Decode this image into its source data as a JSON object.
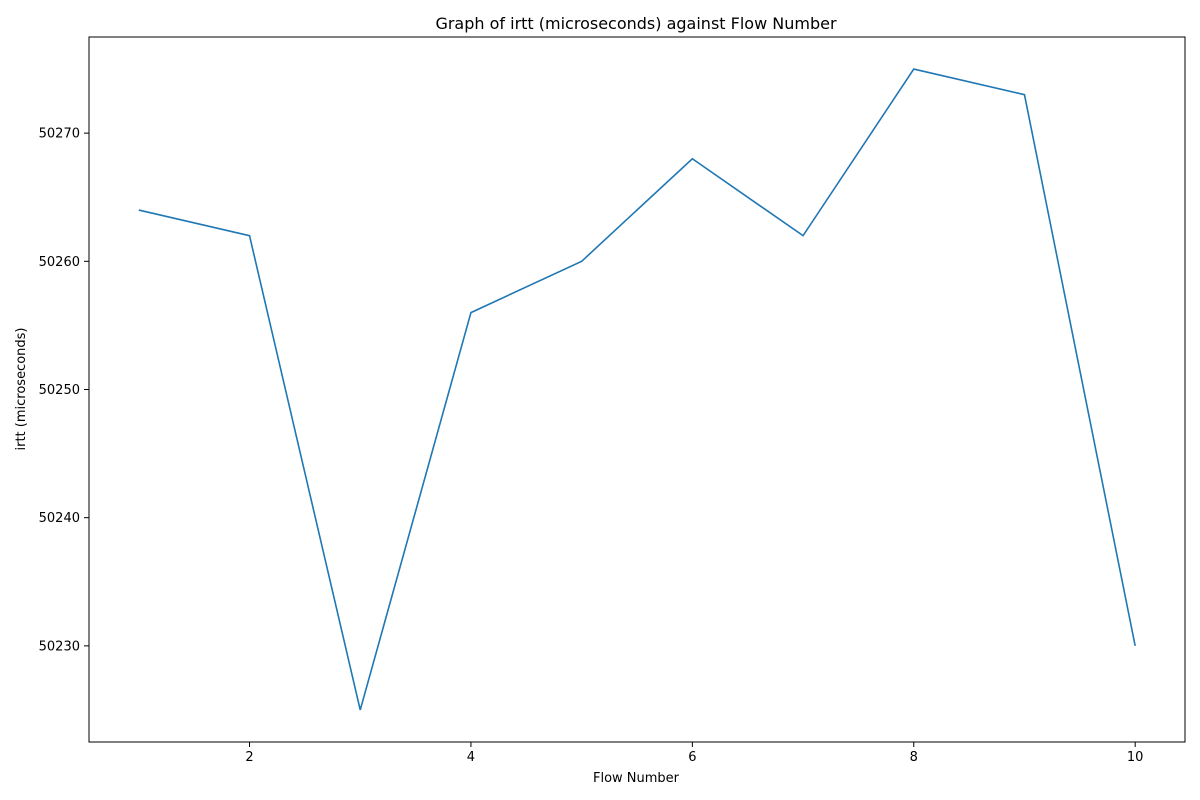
{
  "chart_data": {
    "type": "line",
    "title": "Graph of irtt (microseconds) against Flow Number",
    "xlabel": "Flow Number",
    "ylabel": "irtt (microseconds)",
    "xlim": [
      0.55,
      10.45
    ],
    "ylim": [
      50222.5,
      50277.5
    ],
    "xticks": [
      2,
      4,
      6,
      8,
      10
    ],
    "yticks": [
      50230,
      50240,
      50250,
      50260,
      50270
    ],
    "grid": false,
    "legend": "none",
    "series": [
      {
        "color": "#1f77b4",
        "x": [
          1,
          2,
          3,
          4,
          5,
          6,
          7,
          8,
          9,
          10
        ],
        "y": [
          50264,
          50262,
          50225,
          50256,
          50260,
          50268,
          50262,
          50275,
          50273,
          50230
        ]
      }
    ]
  }
}
